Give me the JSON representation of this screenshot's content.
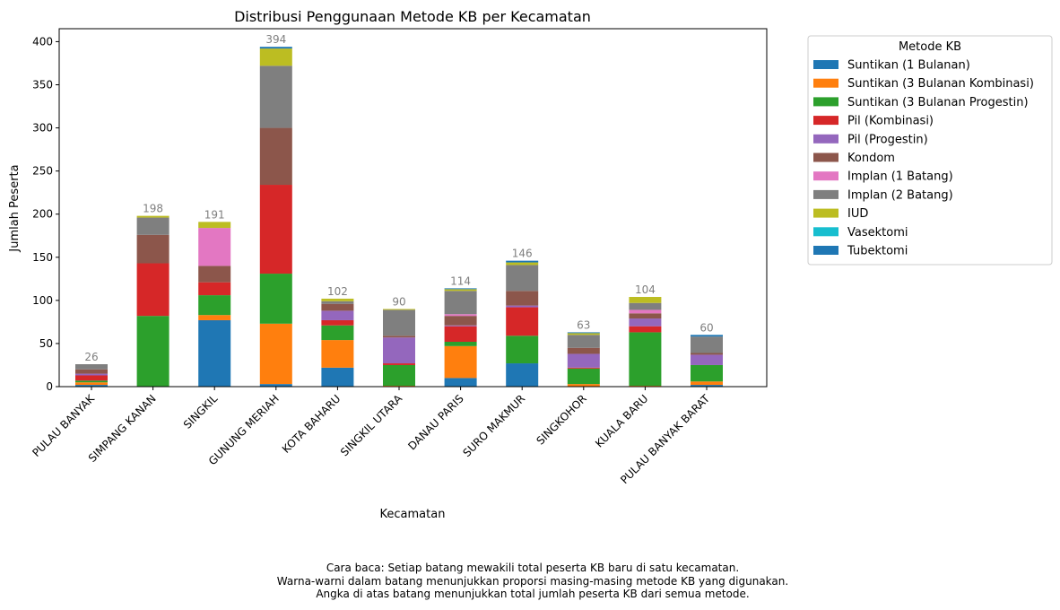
{
  "chart_data": {
    "type": "bar",
    "stacked": true,
    "title": "Distribusi Penggunaan Metode KB per Kecamatan",
    "xlabel": "Kecamatan",
    "ylabel": "Jumlah Peserta",
    "ylim": [
      0,
      415
    ],
    "yticks": [
      0,
      50,
      100,
      150,
      200,
      250,
      300,
      350,
      400
    ],
    "grid": false,
    "legend_title": "Metode KB",
    "legend_position": "outside-right-top",
    "categories": [
      "PULAU BANYAK",
      "SIMPANG KANAN",
      "SINGKIL",
      "GUNUNG MERIAH",
      "KOTA BAHARU",
      "SINGKIL UTARA",
      "DANAU PARIS",
      "SURO MAKMUR",
      "SINGKOHOR",
      "KUALA BARU",
      "PULAU BANYAK BARAT"
    ],
    "totals": [
      26,
      198,
      191,
      394,
      102,
      90,
      114,
      146,
      63,
      104,
      60
    ],
    "series": [
      {
        "name": "Suntikan (1 Bulanan)",
        "color": "#1f77b4",
        "values": [
          2,
          0,
          77,
          3,
          22,
          0,
          10,
          27,
          0,
          0,
          2
        ]
      },
      {
        "name": "Suntikan (3 Bulanan Kombinasi)",
        "color": "#ff7f0e",
        "values": [
          3,
          0,
          6,
          70,
          32,
          1,
          37,
          0,
          3,
          1,
          4
        ]
      },
      {
        "name": "Suntikan (3 Bulanan Progestin)",
        "color": "#2ca02c",
        "values": [
          2,
          82,
          23,
          58,
          17,
          24,
          5,
          32,
          18,
          62,
          19
        ]
      },
      {
        "name": "Pil (Kombinasi)",
        "color": "#d62728",
        "values": [
          6,
          61,
          15,
          103,
          6,
          2,
          18,
          33,
          1,
          7,
          0
        ]
      },
      {
        "name": "Pil (Progestin)",
        "color": "#9467bd",
        "values": [
          2,
          0,
          0,
          0,
          11,
          30,
          1,
          2,
          16,
          9,
          12
        ]
      },
      {
        "name": "Kondom",
        "color": "#8c564b",
        "values": [
          5,
          33,
          19,
          66,
          8,
          2,
          11,
          17,
          7,
          6,
          2
        ]
      },
      {
        "name": "Implan (1 Batang)",
        "color": "#e377c2",
        "values": [
          0,
          0,
          44,
          0,
          0,
          0,
          2,
          0,
          0,
          4,
          0
        ]
      },
      {
        "name": "Implan (2 Batang)",
        "color": "#7f7f7f",
        "values": [
          6,
          20,
          0,
          72,
          3,
          30,
          27,
          30,
          15,
          8,
          19
        ]
      },
      {
        "name": "IUD",
        "color": "#bcbd22",
        "values": [
          0,
          2,
          7,
          20,
          3,
          1,
          2,
          3,
          2,
          7,
          0
        ]
      },
      {
        "name": "Vasektomi",
        "color": "#17becf",
        "values": [
          0,
          0,
          0,
          0,
          0,
          0,
          0,
          0,
          0,
          0,
          0
        ]
      },
      {
        "name": "Tubektomi",
        "color": "#1f77b4",
        "values": [
          0,
          0,
          0,
          2,
          0,
          0,
          1,
          2,
          1,
          0,
          2
        ]
      }
    ]
  },
  "caption": {
    "line1": "Cara baca: Setiap batang mewakili total peserta KB baru di satu kecamatan.",
    "line2": "Warna-warni dalam batang menunjukkan proporsi masing-masing metode KB yang digunakan.",
    "line3": "Angka di atas batang menunjukkan total jumlah peserta KB dari semua metode."
  }
}
